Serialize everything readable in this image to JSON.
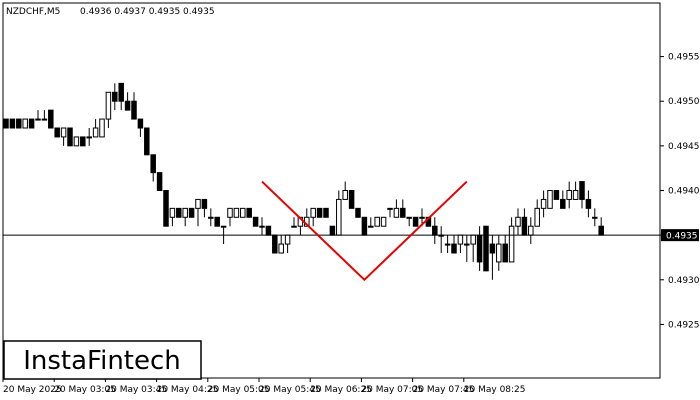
{
  "header": {
    "symbol": "NZDCHF,M5",
    "ohlc": "0.4936 0.4937 0.4935 0.4935"
  },
  "logo": {
    "text": "InstaFintech"
  },
  "chart_data": {
    "type": "candlestick",
    "symbol": "NZDCHF",
    "timeframe": "M5",
    "ylim": [
      0.4919,
      0.4961
    ],
    "y_ticks": [
      "0.4955",
      "0.4950",
      "0.4945",
      "0.4940",
      "0.4935",
      "0.4930",
      "0.4925"
    ],
    "x_ticks": [
      "20 May 2025",
      "20 May 03:05",
      "20 May 03:45",
      "20 May 04:25",
      "20 May 05:05",
      "20 May 05:45",
      "20 May 06:25",
      "20 May 07:05",
      "20 May 07:45",
      "20 May 08:25"
    ],
    "current_price": "0.4935",
    "current_price_value": 0.4935,
    "colors": {
      "bull": "#ffffff",
      "bear": "#000000",
      "pattern": "#e60000",
      "axis": "#000000"
    },
    "candles": [
      [
        0.4948,
        0.4948,
        0.4947,
        0.4947
      ],
      [
        0.4948,
        0.4948,
        0.4947,
        0.4947
      ],
      [
        0.4948,
        0.4948,
        0.4947,
        0.4947
      ],
      [
        0.4947,
        0.4948,
        0.4947,
        0.4948
      ],
      [
        0.4948,
        0.4948,
        0.4947,
        0.4947
      ],
      [
        0.4948,
        0.4949,
        0.4948,
        0.4948
      ],
      [
        0.4948,
        0.4949,
        0.4948,
        0.4948
      ],
      [
        0.4949,
        0.4949,
        0.4947,
        0.4947
      ],
      [
        0.4947,
        0.4947,
        0.4946,
        0.4946
      ],
      [
        0.4946,
        0.4947,
        0.4945,
        0.4947
      ],
      [
        0.4947,
        0.4947,
        0.4945,
        0.4945
      ],
      [
        0.4945,
        0.4946,
        0.4945,
        0.4946
      ],
      [
        0.4946,
        0.4946,
        0.4945,
        0.4945
      ],
      [
        0.4946,
        0.4947,
        0.4945,
        0.4946
      ],
      [
        0.4946,
        0.4948,
        0.4946,
        0.4947
      ],
      [
        0.4946,
        0.4948,
        0.4946,
        0.4948
      ],
      [
        0.4948,
        0.4951,
        0.4947,
        0.4951
      ],
      [
        0.4951,
        0.4952,
        0.4949,
        0.495
      ],
      [
        0.4952,
        0.4952,
        0.4949,
        0.495
      ],
      [
        0.495,
        0.4951,
        0.4949,
        0.4949
      ],
      [
        0.495,
        0.4951,
        0.4948,
        0.4948
      ],
      [
        0.4948,
        0.4948,
        0.4946,
        0.4947
      ],
      [
        0.4947,
        0.4947,
        0.4944,
        0.4944
      ],
      [
        0.4944,
        0.4944,
        0.4941,
        0.4942
      ],
      [
        0.4942,
        0.4942,
        0.494,
        0.494
      ],
      [
        0.494,
        0.494,
        0.4936,
        0.4936
      ],
      [
        0.4937,
        0.4938,
        0.4936,
        0.4938
      ],
      [
        0.4938,
        0.4938,
        0.4937,
        0.4937
      ],
      [
        0.4937,
        0.4938,
        0.4936,
        0.4938
      ],
      [
        0.4938,
        0.4938,
        0.4937,
        0.4937
      ],
      [
        0.4938,
        0.4939,
        0.4936,
        0.4939
      ],
      [
        0.4939,
        0.4939,
        0.4937,
        0.4938
      ],
      [
        0.4937,
        0.4938,
        0.4936,
        0.4937
      ],
      [
        0.4937,
        0.4937,
        0.4936,
        0.4936
      ],
      [
        0.4936,
        0.4936,
        0.4934,
        0.4936
      ],
      [
        0.4937,
        0.4938,
        0.4936,
        0.4938
      ],
      [
        0.4937,
        0.4938,
        0.4937,
        0.4938
      ],
      [
        0.4937,
        0.4938,
        0.4937,
        0.4938
      ],
      [
        0.4938,
        0.4938,
        0.4937,
        0.4937
      ],
      [
        0.4937,
        0.4937,
        0.4936,
        0.4936
      ],
      [
        0.4936,
        0.4937,
        0.4935,
        0.4936
      ],
      [
        0.4936,
        0.4936,
        0.4935,
        0.4935
      ],
      [
        0.4935,
        0.4935,
        0.4933,
        0.4933
      ],
      [
        0.4933,
        0.4935,
        0.4933,
        0.4934
      ],
      [
        0.4934,
        0.4935,
        0.4933,
        0.4935
      ],
      [
        0.4936,
        0.4937,
        0.4936,
        0.4936
      ],
      [
        0.4936,
        0.4937,
        0.4935,
        0.4937
      ],
      [
        0.4936,
        0.4938,
        0.4936,
        0.4937
      ],
      [
        0.4937,
        0.4938,
        0.4936,
        0.4938
      ],
      [
        0.4938,
        0.4938,
        0.4937,
        0.4937
      ],
      [
        0.4938,
        0.4938,
        0.4937,
        0.4937
      ],
      [
        0.4936,
        0.4936,
        0.4935,
        0.4935
      ],
      [
        0.4935,
        0.494,
        0.4935,
        0.4939
      ],
      [
        0.4939,
        0.4941,
        0.4939,
        0.494
      ],
      [
        0.494,
        0.494,
        0.4938,
        0.4938
      ],
      [
        0.4938,
        0.4938,
        0.4937,
        0.4937
      ],
      [
        0.4937,
        0.4937,
        0.4935,
        0.4935
      ],
      [
        0.4936,
        0.4937,
        0.4936,
        0.4936
      ],
      [
        0.4936,
        0.4937,
        0.4936,
        0.4937
      ],
      [
        0.4936,
        0.4937,
        0.4936,
        0.4937
      ],
      [
        0.4938,
        0.4938,
        0.4937,
        0.4938
      ],
      [
        0.4937,
        0.4939,
        0.4937,
        0.4938
      ],
      [
        0.4938,
        0.4939,
        0.4937,
        0.4937
      ],
      [
        0.4937,
        0.4937,
        0.4936,
        0.4937
      ],
      [
        0.4937,
        0.4937,
        0.4936,
        0.4936
      ],
      [
        0.4937,
        0.4938,
        0.4936,
        0.4937
      ],
      [
        0.4937,
        0.4937,
        0.4936,
        0.4936
      ],
      [
        0.4936,
        0.4937,
        0.4934,
        0.4935
      ],
      [
        0.4935,
        0.4936,
        0.4933,
        0.4935
      ],
      [
        0.4934,
        0.4935,
        0.4933,
        0.4934
      ],
      [
        0.4934,
        0.4935,
        0.4933,
        0.4933
      ],
      [
        0.4934,
        0.4935,
        0.4933,
        0.4935
      ],
      [
        0.4934,
        0.4935,
        0.4932,
        0.4934
      ],
      [
        0.4934,
        0.4935,
        0.4932,
        0.4935
      ],
      [
        0.4935,
        0.4936,
        0.4931,
        0.4932
      ],
      [
        0.4936,
        0.4936,
        0.4931,
        0.4931
      ],
      [
        0.4934,
        0.4935,
        0.493,
        0.4933
      ],
      [
        0.4932,
        0.4935,
        0.4931,
        0.4934
      ],
      [
        0.4934,
        0.4935,
        0.4932,
        0.4932
      ],
      [
        0.4932,
        0.4937,
        0.4932,
        0.4936
      ],
      [
        0.4936,
        0.4938,
        0.4935,
        0.4937
      ],
      [
        0.4937,
        0.4938,
        0.4935,
        0.4935
      ],
      [
        0.4935,
        0.4937,
        0.4934,
        0.4936
      ],
      [
        0.4936,
        0.4939,
        0.4936,
        0.4938
      ],
      [
        0.4938,
        0.494,
        0.4937,
        0.4939
      ],
      [
        0.4938,
        0.494,
        0.4938,
        0.494
      ],
      [
        0.494,
        0.494,
        0.4939,
        0.4939
      ],
      [
        0.4939,
        0.494,
        0.4938,
        0.4938
      ],
      [
        0.4939,
        0.4941,
        0.4938,
        0.494
      ],
      [
        0.4939,
        0.4941,
        0.4939,
        0.494
      ],
      [
        0.4941,
        0.4941,
        0.4938,
        0.4939
      ],
      [
        0.4939,
        0.494,
        0.4937,
        0.4938
      ],
      [
        0.4937,
        0.4938,
        0.4936,
        0.4937
      ],
      [
        0.4936,
        0.4937,
        0.4935,
        0.4935
      ]
    ],
    "pattern_line": [
      {
        "time": "20 May 05:45",
        "price": 0.4941
      },
      {
        "time": "20 May 07:05",
        "price": 0.493
      },
      {
        "time": "20 May 08:25",
        "price": 0.4941
      }
    ]
  }
}
